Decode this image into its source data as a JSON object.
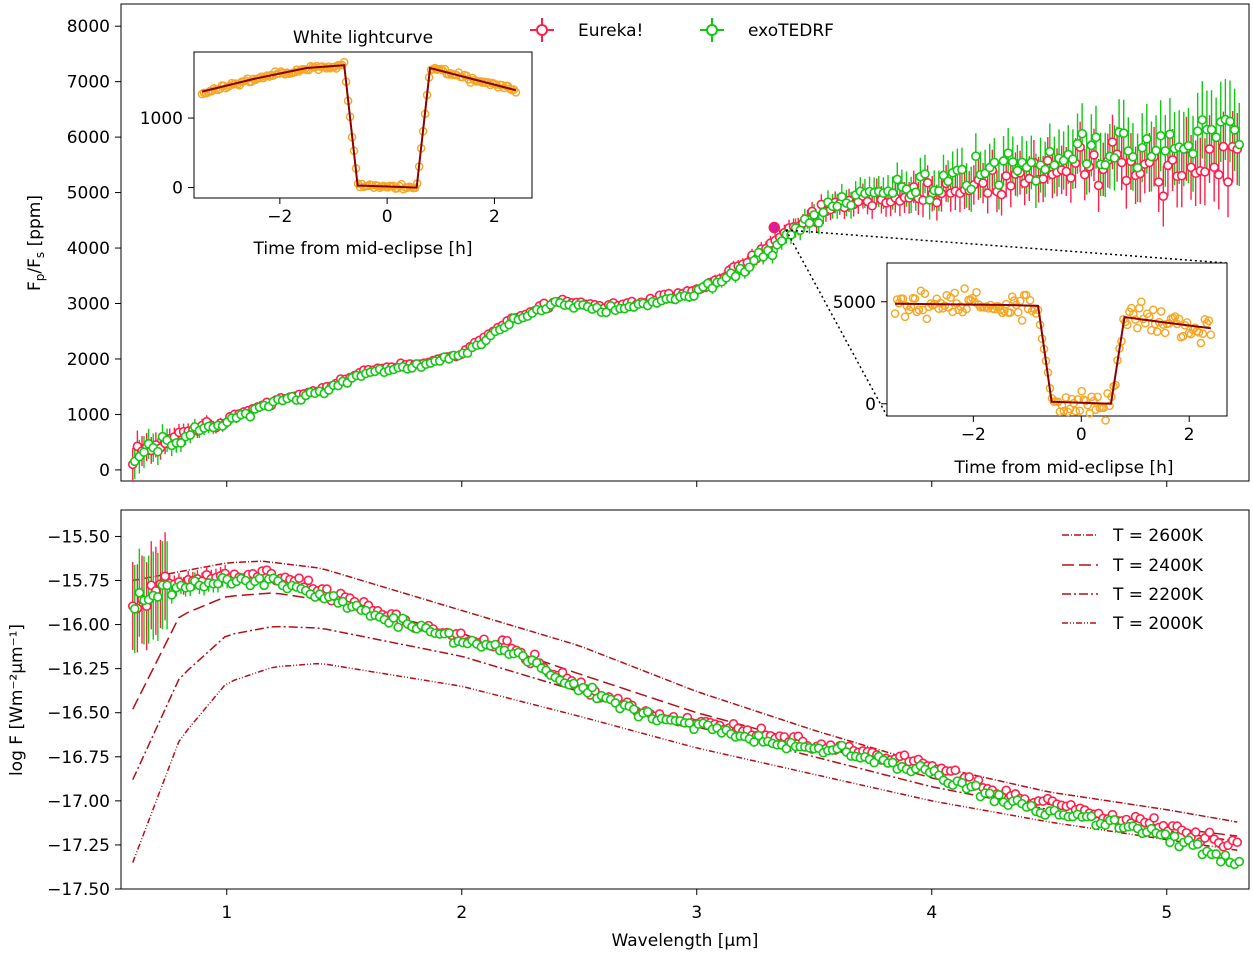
{
  "chart_data": [
    {
      "id": "top-panel",
      "type": "scatter",
      "ylabel_main": "F",
      "ylabel_sub1": "p",
      "ylabel_mid": "/F",
      "ylabel_sub2": "s",
      "ylabel_unit": " [ppm]",
      "ylim": [
        -200,
        8400
      ],
      "xlim": [
        0.55,
        5.35
      ],
      "yticks": [
        "0",
        "1000",
        "2000",
        "3000",
        "4000",
        "5000",
        "6000",
        "7000",
        "8000"
      ],
      "ytick_values": [
        0,
        1000,
        2000,
        3000,
        4000,
        5000,
        6000,
        7000,
        8000
      ],
      "legend": [
        {
          "name": "Eureka!",
          "color": "#ff1f4b"
        },
        {
          "name": "exoTEDRF",
          "color": "#11c711"
        }
      ],
      "highlight_point": {
        "x": 3.33,
        "y": 4370
      },
      "series": [
        {
          "name": "Eureka!",
          "color": "#ff1f4b",
          "x": [
            0.6,
            0.8,
            1.0,
            1.2,
            1.4,
            1.6,
            1.8,
            2.0,
            2.2,
            2.4,
            2.6,
            2.8,
            3.0,
            3.2,
            3.4,
            3.6,
            3.8,
            4.0,
            4.2,
            4.4,
            4.6,
            4.8,
            5.0,
            5.3
          ],
          "y": [
            350,
            600,
            900,
            1250,
            1450,
            1800,
            1900,
            2100,
            2700,
            3050,
            2950,
            3050,
            3250,
            3700,
            4350,
            4750,
            4900,
            5000,
            5150,
            5300,
            5350,
            5450,
            5500,
            5700
          ],
          "err": [
            300,
            150,
            90,
            70,
            60,
            60,
            55,
            55,
            60,
            70,
            70,
            80,
            90,
            110,
            150,
            200,
            250,
            320,
            360,
            400,
            450,
            500,
            550,
            650
          ]
        },
        {
          "name": "exoTEDRF",
          "color": "#11c711",
          "x": [
            0.6,
            0.8,
            1.0,
            1.2,
            1.4,
            1.6,
            1.8,
            2.0,
            2.2,
            2.4,
            2.6,
            2.8,
            3.0,
            3.2,
            3.4,
            3.6,
            3.8,
            4.0,
            4.2,
            4.4,
            4.6,
            4.8,
            5.0,
            5.3
          ],
          "y": [
            300,
            580,
            870,
            1220,
            1420,
            1770,
            1880,
            2080,
            2650,
            3020,
            2900,
            3000,
            3200,
            3650,
            4300,
            4850,
            5050,
            5200,
            5350,
            5500,
            5600,
            5750,
            5900,
            6100
          ],
          "err": [
            320,
            160,
            100,
            75,
            65,
            60,
            58,
            58,
            62,
            72,
            75,
            85,
            95,
            120,
            170,
            230,
            290,
            360,
            420,
            480,
            540,
            600,
            650,
            750
          ]
        }
      ]
    },
    {
      "id": "inset-white",
      "type": "line",
      "title": "White lightcurve",
      "xlabel": "Time from mid-eclipse [h]",
      "xlim": [
        -3.6,
        2.7
      ],
      "ylim": [
        -150,
        1950
      ],
      "xticks": [
        "−2",
        "0",
        "2"
      ],
      "xtick_values": [
        -2,
        0,
        2
      ],
      "yticks": [
        "0",
        "1000"
      ],
      "ytick_values": [
        0,
        1000
      ],
      "model": {
        "x": [
          -3.45,
          -2.5,
          -1.5,
          -0.8,
          -0.55,
          0.55,
          0.8,
          1.5,
          2.4
        ],
        "y": [
          1380,
          1560,
          1720,
          1760,
          30,
          0,
          1720,
          1580,
          1400
        ]
      },
      "data_color": "#f5a623",
      "model_color": "#8b0000"
    },
    {
      "id": "inset-spectral",
      "type": "line",
      "xlabel": "Time from mid-eclipse [h]",
      "xlim": [
        -3.6,
        2.7
      ],
      "ylim": [
        -600,
        6900
      ],
      "xticks": [
        "−2",
        "0",
        "2"
      ],
      "xtick_values": [
        -2,
        0,
        2
      ],
      "yticks": [
        "0",
        "5000"
      ],
      "ytick_values": [
        0,
        5000
      ],
      "model": {
        "x": [
          -3.45,
          -1.5,
          -0.8,
          -0.55,
          0.55,
          0.8,
          1.5,
          2.4
        ],
        "y": [
          4900,
          4850,
          4800,
          100,
          0,
          4250,
          4000,
          3700
        ]
      },
      "data_color": "#f5a623",
      "model_color": "#8b0000"
    },
    {
      "id": "bottom-panel",
      "type": "line",
      "xlabel": "Wavelength [μm]",
      "ylabel": "log F [Wm⁻²μm⁻¹]",
      "xlim": [
        0.55,
        5.35
      ],
      "ylim": [
        -17.5,
        -15.35
      ],
      "xticks": [
        "1",
        "2",
        "3",
        "4",
        "5"
      ],
      "xtick_values": [
        1,
        2,
        3,
        4,
        5
      ],
      "yticks": [
        "−15.50",
        "−15.75",
        "−16.00",
        "−16.25",
        "−16.50",
        "−16.75",
        "−17.00",
        "−17.25",
        "−17.50"
      ],
      "ytick_values": [
        -15.5,
        -15.75,
        -16.0,
        -16.25,
        -16.5,
        -16.75,
        -17.0,
        -17.25,
        -17.5
      ],
      "series": [
        {
          "name": "Eureka!",
          "color": "#ff1f4b",
          "x": [
            0.6,
            0.8,
            1.0,
            1.2,
            1.4,
            1.6,
            1.8,
            2.0,
            2.2,
            2.5,
            2.8,
            3.0,
            3.3,
            3.6,
            4.0,
            4.3,
            4.6,
            5.0,
            5.3
          ],
          "y": [
            -15.85,
            -15.75,
            -15.72,
            -15.72,
            -15.8,
            -15.9,
            -16.0,
            -16.08,
            -16.12,
            -16.35,
            -16.5,
            -16.55,
            -16.63,
            -16.7,
            -16.8,
            -16.95,
            -17.05,
            -17.15,
            -17.25
          ]
        },
        {
          "name": "exoTEDRF",
          "color": "#11c711",
          "x": [
            0.6,
            0.8,
            1.0,
            1.2,
            1.4,
            1.6,
            1.8,
            2.0,
            2.2,
            2.5,
            2.8,
            3.0,
            3.3,
            3.6,
            4.0,
            4.3,
            4.6,
            5.0,
            5.3
          ],
          "y": [
            -15.9,
            -15.78,
            -15.75,
            -15.76,
            -15.84,
            -15.94,
            -16.02,
            -16.1,
            -16.14,
            -16.37,
            -16.53,
            -16.58,
            -16.66,
            -16.72,
            -16.85,
            -17.0,
            -17.1,
            -17.2,
            -17.35
          ]
        }
      ],
      "models": [
        {
          "label": "T = 2600K",
          "color": "#b01018",
          "dash": "7,2,1,2",
          "x": [
            0.6,
            0.8,
            1.0,
            1.15,
            1.4,
            2.0,
            2.5,
            3.0,
            3.5,
            4.0,
            4.5,
            5.0,
            5.3
          ],
          "y": [
            -15.75,
            -15.7,
            -15.65,
            -15.64,
            -15.68,
            -15.92,
            -16.12,
            -16.38,
            -16.6,
            -16.8,
            -16.95,
            -17.05,
            -17.12
          ]
        },
        {
          "label": "T = 2400K",
          "color": "#b01018",
          "dash": "12,5",
          "x": [
            0.6,
            0.8,
            1.0,
            1.2,
            1.4,
            2.0,
            2.5,
            3.0,
            3.5,
            4.0,
            4.5,
            5.0,
            5.3
          ],
          "y": [
            -16.48,
            -15.95,
            -15.84,
            -15.82,
            -15.86,
            -16.05,
            -16.28,
            -16.5,
            -16.68,
            -16.87,
            -17.02,
            -17.15,
            -17.2
          ]
        },
        {
          "label": "T = 2200K",
          "color": "#b01018",
          "dash": "9,3,2,3",
          "x": [
            0.6,
            0.8,
            1.0,
            1.2,
            1.4,
            2.0,
            2.5,
            3.0,
            3.5,
            4.0,
            4.5,
            5.0,
            5.3
          ],
          "y": [
            -16.88,
            -16.3,
            -16.06,
            -16.01,
            -16.02,
            -16.18,
            -16.38,
            -16.58,
            -16.75,
            -16.92,
            -17.05,
            -17.17,
            -17.23
          ]
        },
        {
          "label": "T = 2000K",
          "color": "#b01018",
          "dash": "6,2,1,2,1,2",
          "x": [
            0.6,
            0.8,
            1.0,
            1.2,
            1.4,
            2.0,
            2.5,
            3.0,
            3.5,
            4.0,
            4.5,
            5.0,
            5.3
          ],
          "y": [
            -17.35,
            -16.65,
            -16.33,
            -16.24,
            -16.22,
            -16.35,
            -16.52,
            -16.7,
            -16.85,
            -17.0,
            -17.12,
            -17.22,
            -17.28
          ]
        }
      ]
    }
  ]
}
